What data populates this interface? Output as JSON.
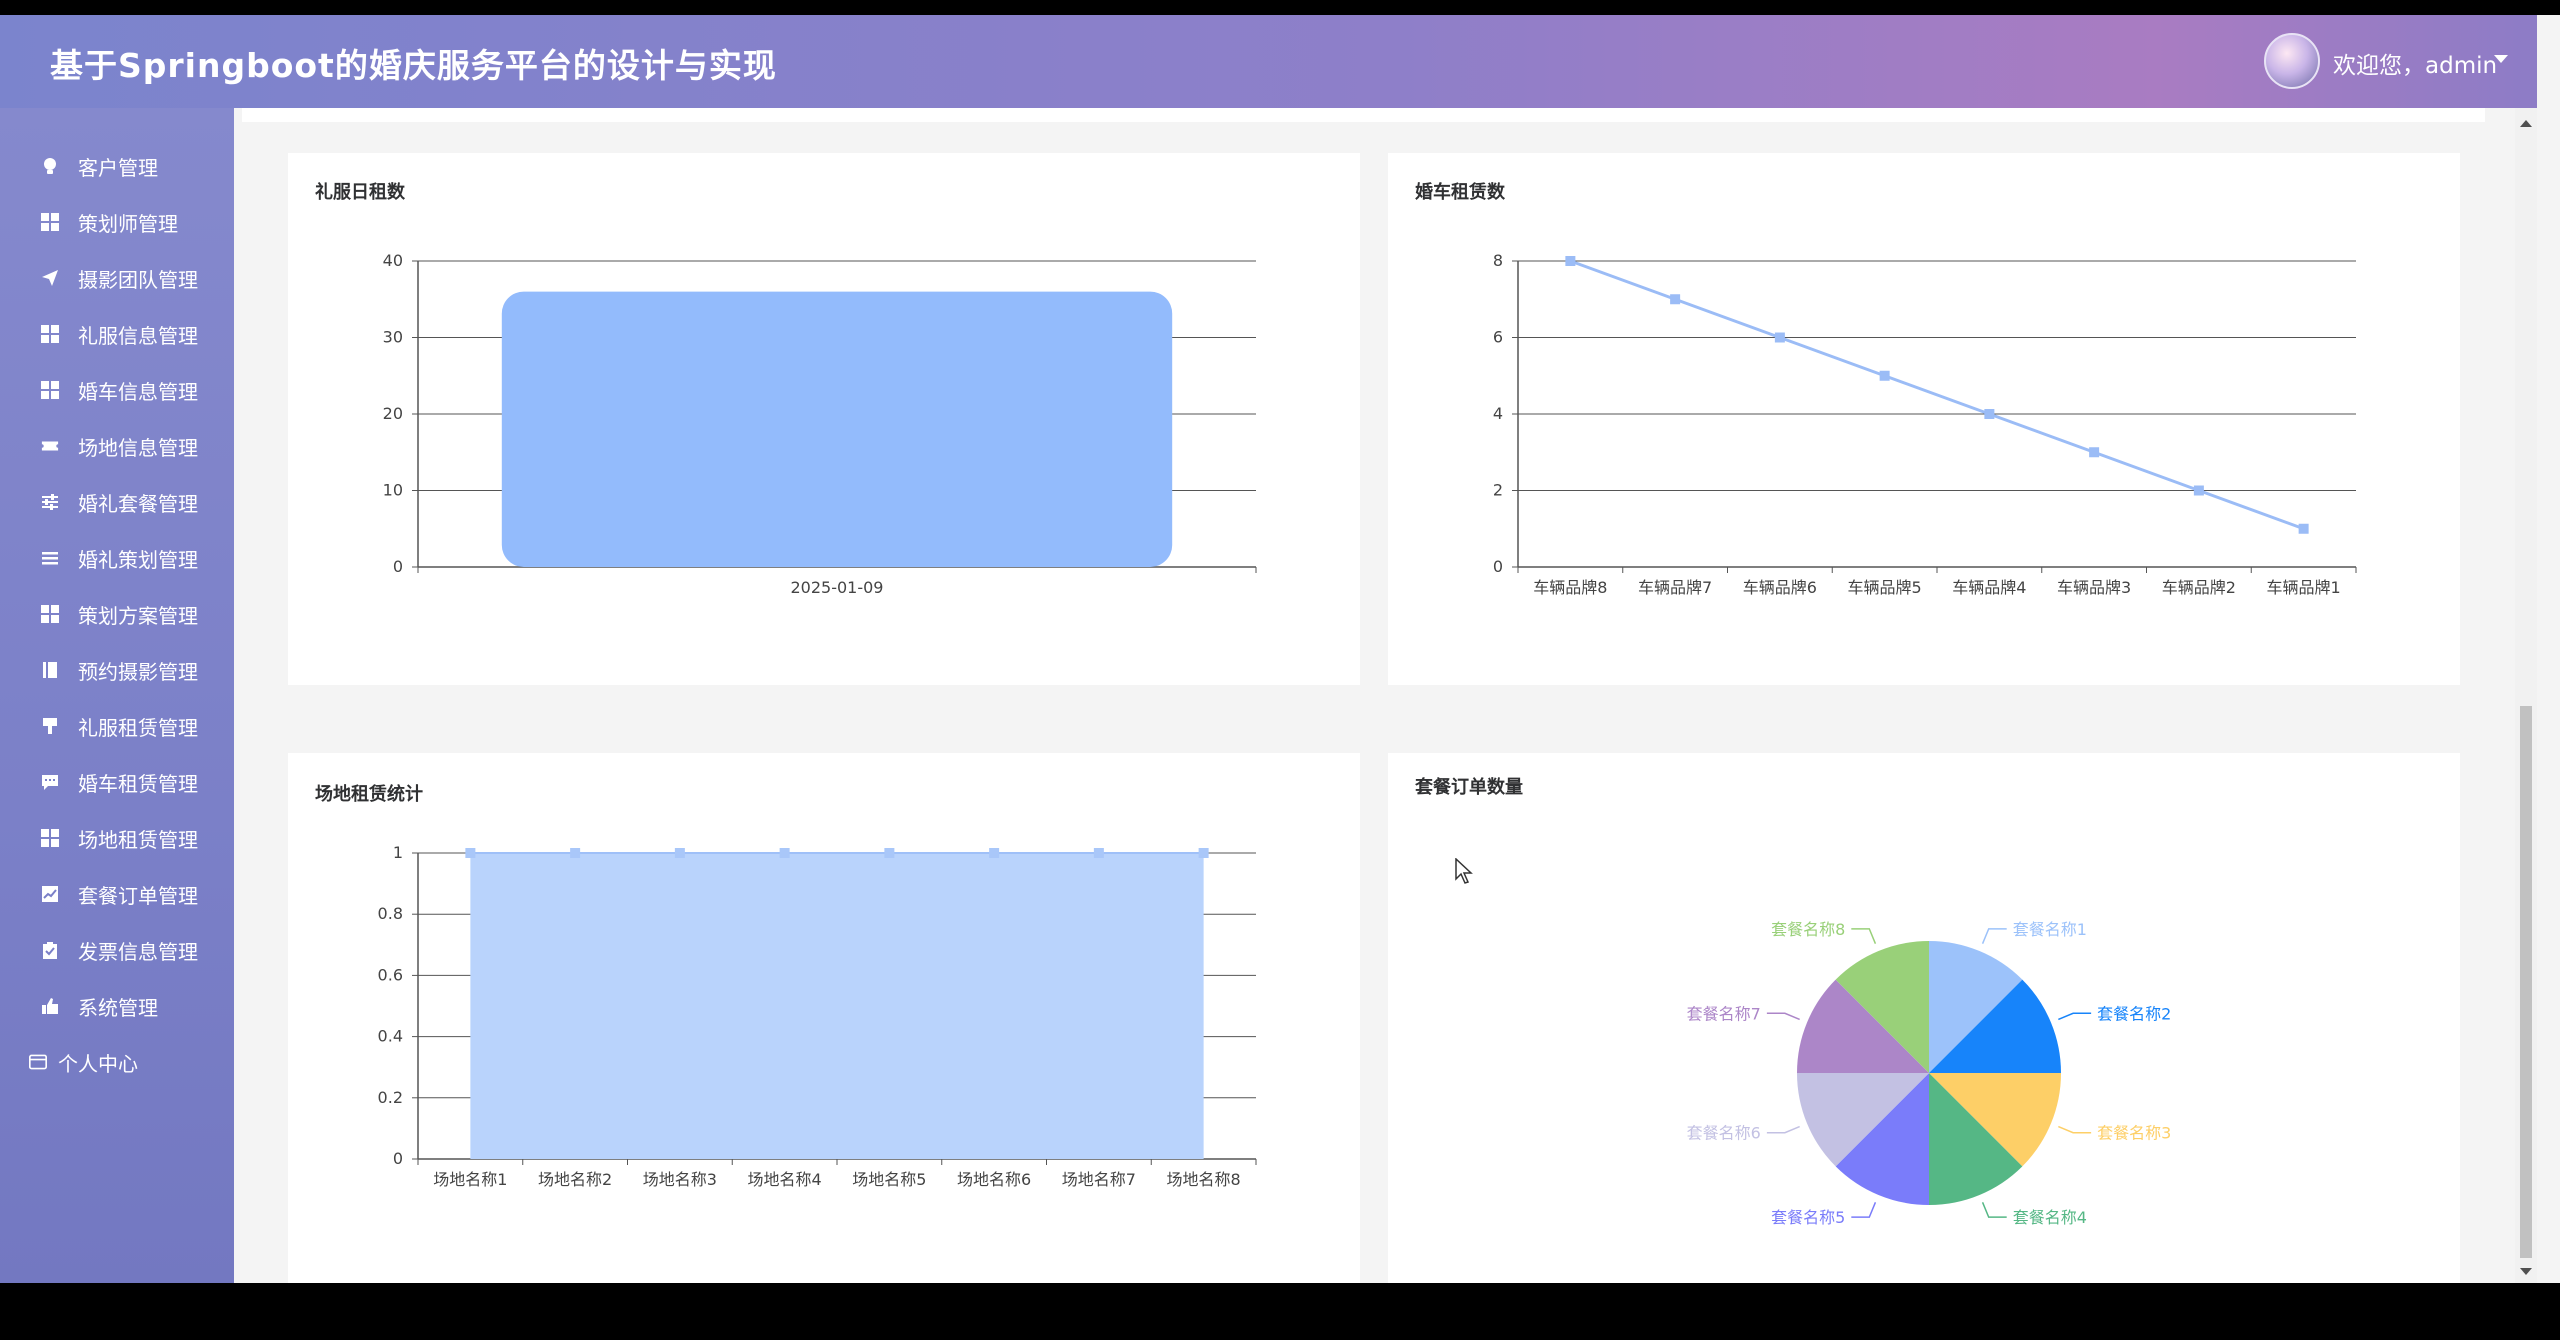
{
  "header": {
    "title": "基于Springboot的婚庆服务平台的设计与实现",
    "welcome": "欢迎您，admin"
  },
  "sidebar": {
    "items": [
      {
        "label": "客户管理",
        "icon": "bulb-icon"
      },
      {
        "label": "策划师管理",
        "icon": "grid-icon"
      },
      {
        "label": "摄影团队管理",
        "icon": "send-icon"
      },
      {
        "label": "礼服信息管理",
        "icon": "grid-icon"
      },
      {
        "label": "婚车信息管理",
        "icon": "grid-icon"
      },
      {
        "label": "场地信息管理",
        "icon": "ticket-icon"
      },
      {
        "label": "婚礼套餐管理",
        "icon": "sliders-icon"
      },
      {
        "label": "婚礼策划管理",
        "icon": "menu-icon"
      },
      {
        "label": "策划方案管理",
        "icon": "grid-icon"
      },
      {
        "label": "预约摄影管理",
        "icon": "notebook-icon"
      },
      {
        "label": "礼服租赁管理",
        "icon": "brush-icon"
      },
      {
        "label": "婚车租赁管理",
        "icon": "chat-icon"
      },
      {
        "label": "场地租赁管理",
        "icon": "grid-icon"
      },
      {
        "label": "套餐订单管理",
        "icon": "chart-icon"
      },
      {
        "label": "发票信息管理",
        "icon": "clipboard-icon"
      },
      {
        "label": "系统管理",
        "icon": "thumb-icon"
      },
      {
        "label": "个人中心",
        "icon": "card-icon"
      }
    ]
  },
  "colors": {
    "bar": "#93bbfc",
    "line": "#9bbcf6",
    "area": "#b9d3fc",
    "pie": [
      "#9cc2fa",
      "#1784fa",
      "#fdcf67",
      "#55b785",
      "#7a7cfa",
      "#c3c1e3",
      "#ac86c8",
      "#99d079"
    ]
  },
  "chart_data": [
    {
      "type": "bar",
      "title": "礼服日租数",
      "categories": [
        "2025-01-09"
      ],
      "values": [
        36
      ],
      "yticks": [
        "0",
        "10",
        "20",
        "30",
        "40"
      ],
      "ylim": [
        0,
        40
      ],
      "grid": true
    },
    {
      "type": "line",
      "title": "婚车租赁数",
      "categories": [
        "车辆品牌8",
        "车辆品牌7",
        "车辆品牌6",
        "车辆品牌5",
        "车辆品牌4",
        "车辆品牌3",
        "车辆品牌2",
        "车辆品牌1"
      ],
      "values": [
        8,
        7,
        6,
        5,
        4,
        3,
        2,
        1
      ],
      "yticks": [
        "0",
        "2",
        "4",
        "6",
        "8"
      ],
      "ylim": [
        0,
        8
      ],
      "grid": true
    },
    {
      "type": "area",
      "title": "场地租赁统计",
      "categories": [
        "场地名称1",
        "场地名称2",
        "场地名称3",
        "场地名称4",
        "场地名称5",
        "场地名称6",
        "场地名称7",
        "场地名称8"
      ],
      "values": [
        1,
        1,
        1,
        1,
        1,
        1,
        1,
        1
      ],
      "yticks": [
        "0",
        "0.2",
        "0.4",
        "0.6",
        "0.8",
        "1"
      ],
      "ylim": [
        0,
        1
      ],
      "grid": true
    },
    {
      "type": "pie",
      "title": "套餐订单数量",
      "labels": [
        "套餐名称1",
        "套餐名称2",
        "套餐名称3",
        "套餐名称4",
        "套餐名称5",
        "套餐名称6",
        "套餐名称7",
        "套餐名称8"
      ],
      "values": [
        1,
        1,
        1,
        1,
        1,
        1,
        1,
        1
      ]
    }
  ]
}
